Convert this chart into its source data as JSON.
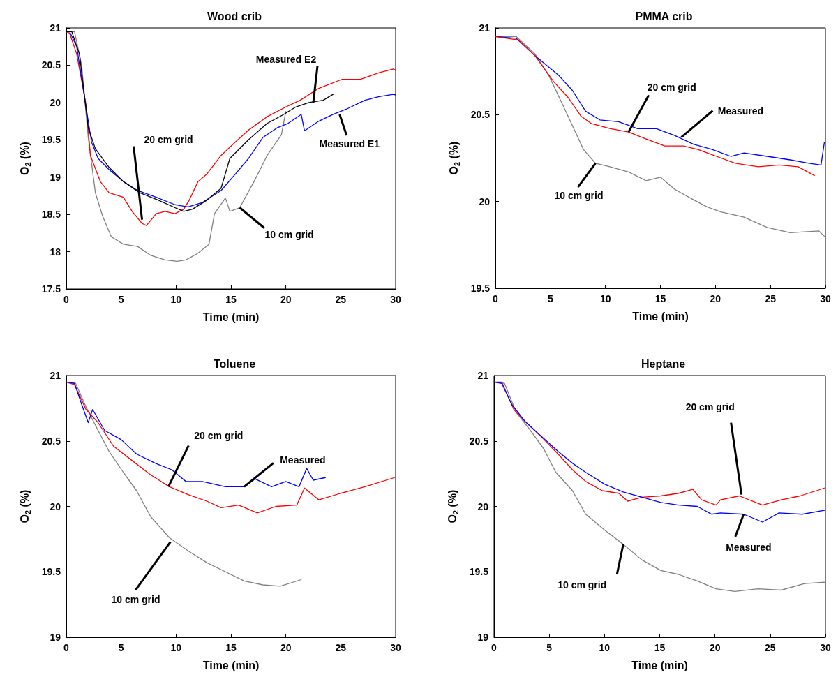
{
  "chart_data": [
    {
      "type": "line",
      "title": "Wood crib",
      "xlabel": "Time (min)",
      "ylabel": "O$_{2}$ (%)",
      "xlim": [
        0,
        30
      ],
      "xticks": [
        0,
        5,
        10,
        15,
        20,
        25,
        30
      ],
      "ylim": [
        17.5,
        21
      ],
      "yticks": [
        17.5,
        18,
        18.5,
        19,
        19.5,
        20,
        20.5,
        21
      ],
      "grid": false,
      "marker": "none",
      "line_style": "solid",
      "annotations": [
        {
          "text": "Measured E2",
          "x": 22.5,
          "y": 20.0
        },
        {
          "text": "Measured E1",
          "x": 24.9,
          "y": 19.84
        },
        {
          "text": "20 cm grid",
          "x": 6.9,
          "y": 18.43
        },
        {
          "text": "10 cm grid",
          "x": 15.8,
          "y": 18.59
        }
      ],
      "series": [
        {
          "color": "#808080",
          "x": [
            0,
            0.75,
            1.4,
            2.0,
            2.65,
            3.3,
            4.1,
            5.2,
            6.5,
            7.7,
            9.0,
            10.1,
            10.9,
            12.0,
            13.0,
            13.5,
            14.5,
            14.9,
            15.8,
            17.1,
            18.3,
            19.6,
            20.0
          ],
          "values": [
            20.95,
            20.95,
            20.5,
            19.53,
            18.79,
            18.48,
            18.2,
            18.1,
            18.07,
            17.95,
            17.89,
            17.87,
            17.89,
            17.98,
            18.1,
            18.51,
            18.72,
            18.54,
            18.59,
            18.94,
            19.29,
            19.57,
            19.88
          ]
        },
        {
          "color": "#ff0000",
          "x": [
            0,
            0.3,
            0.95,
            1.8,
            2.2,
            3.1,
            3.9,
            5.2,
            6.0,
            6.9,
            7.3,
            8.2,
            9.0,
            9.9,
            10.7,
            11.2,
            12.0,
            12.8,
            14.1,
            15.4,
            16.6,
            18.3,
            20.0,
            21.3,
            23.0,
            25.1,
            26.8,
            28.5,
            29.8,
            30
          ],
          "values": [
            20.95,
            20.93,
            20.65,
            19.97,
            19.29,
            18.94,
            18.79,
            18.73,
            18.54,
            18.38,
            18.35,
            18.51,
            18.54,
            18.51,
            18.57,
            18.69,
            18.94,
            19.04,
            19.29,
            19.47,
            19.63,
            19.81,
            19.94,
            20.03,
            20.19,
            20.31,
            20.31,
            20.4,
            20.45,
            20.43
          ]
        },
        {
          "color": "#0000ff",
          "x": [
            0,
            0.3,
            0.95,
            1.8,
            2.3,
            2.9,
            3.9,
            5.2,
            6.5,
            8.2,
            9.9,
            11.1,
            12.4,
            14.1,
            15.4,
            16.6,
            17.9,
            19.2,
            20.2,
            21.4,
            21.7,
            23.0,
            24.3,
            25.5,
            27.2,
            28.5,
            29.8,
            30
          ],
          "values": [
            20.95,
            20.95,
            20.75,
            19.94,
            19.47,
            19.25,
            19.1,
            18.94,
            18.82,
            18.73,
            18.63,
            18.6,
            18.66,
            18.82,
            19.04,
            19.25,
            19.53,
            19.66,
            19.72,
            19.84,
            19.62,
            19.75,
            19.84,
            19.91,
            20.03,
            20.08,
            20.11,
            20.1
          ]
        },
        {
          "color": "#000000",
          "x": [
            0,
            0.5,
            1.2,
            2.0,
            2.65,
            3.9,
            5.2,
            6.7,
            8.4,
            9.9,
            10.7,
            11.5,
            12.8,
            14.1,
            14.9,
            16.6,
            18.3,
            19.8,
            20.9,
            22.1,
            23.4,
            24.3
          ],
          "values": [
            20.95,
            20.95,
            20.65,
            19.66,
            19.38,
            19.13,
            18.94,
            18.79,
            18.69,
            18.59,
            18.54,
            18.57,
            18.69,
            18.85,
            19.25,
            19.5,
            19.72,
            19.84,
            19.94,
            20.0,
            20.03,
            20.11
          ]
        }
      ]
    },
    {
      "type": "line",
      "title": "PMMA crib",
      "xlabel": "Time (min)",
      "ylabel": "O$_{2}$ (%)",
      "xlim": [
        0,
        30
      ],
      "xticks": [
        0,
        5,
        10,
        15,
        20,
        25,
        30
      ],
      "ylim": [
        19.5,
        21
      ],
      "yticks": [
        19.5,
        20,
        20.5,
        21
      ],
      "grid": false,
      "marker": "none",
      "line_style": "solid",
      "annotations": [
        {
          "text": "Measured",
          "x": 16.9,
          "y": 20.37
        },
        {
          "text": "20 cm grid",
          "x": 12.1,
          "y": 20.4
        },
        {
          "text": "10 cm grid",
          "x": 9.1,
          "y": 20.22
        }
      ],
      "series": [
        {
          "color": "#808080",
          "x": [
            0,
            1.9,
            3.6,
            4.9,
            6.1,
            7.2,
            8.0,
            9.1,
            10.4,
            12.1,
            13.7,
            15.0,
            16.3,
            18.0,
            19.2,
            20.5,
            22.6,
            24.7,
            26.8,
            29.4,
            29.9
          ],
          "values": [
            20.95,
            20.95,
            20.85,
            20.72,
            20.56,
            20.41,
            20.3,
            20.22,
            20.2,
            20.17,
            20.12,
            20.14,
            20.07,
            20.01,
            19.97,
            19.94,
            19.91,
            19.85,
            19.82,
            19.83,
            19.8
          ]
        },
        {
          "color": "#0000ff",
          "x": [
            0,
            1.9,
            3.6,
            5.7,
            7.0,
            8.2,
            9.5,
            11.2,
            12.9,
            14.6,
            16.3,
            18.0,
            19.7,
            21.4,
            22.6,
            24.7,
            26.8,
            28.5,
            29.6,
            29.9
          ],
          "values": [
            20.95,
            20.94,
            20.84,
            20.73,
            20.64,
            20.52,
            20.47,
            20.46,
            20.42,
            20.42,
            20.38,
            20.33,
            20.3,
            20.26,
            20.28,
            20.26,
            20.24,
            20.22,
            20.21,
            20.34
          ]
        },
        {
          "color": "#ff0000",
          "x": [
            0,
            2.1,
            3.6,
            5.3,
            6.6,
            7.8,
            8.7,
            10.4,
            12.1,
            13.7,
            15.4,
            17.1,
            18.4,
            20.1,
            21.8,
            23.9,
            25.8,
            27.5,
            29.0
          ],
          "values": [
            20.95,
            20.93,
            20.84,
            20.69,
            20.6,
            20.49,
            20.45,
            20.42,
            20.4,
            20.36,
            20.32,
            20.32,
            20.3,
            20.26,
            20.22,
            20.2,
            20.21,
            20.2,
            20.15
          ]
        }
      ]
    },
    {
      "type": "line",
      "title": "Toluene",
      "xlabel": "Time (min)",
      "ylabel": "O$_{2}$ (%)",
      "xlim": [
        0,
        30
      ],
      "xticks": [
        0,
        5,
        10,
        15,
        20,
        25,
        30
      ],
      "ylim": [
        19,
        21
      ],
      "yticks": [
        19,
        19.5,
        20,
        20.5,
        21
      ],
      "grid": false,
      "marker": "none",
      "line_style": "solid",
      "annotations": [
        {
          "text": "Measured",
          "x": 16.2,
          "y": 20.15
        },
        {
          "text": "20 cm grid",
          "x": 9.3,
          "y": 20.15
        },
        {
          "text": "10 cm grid",
          "x": 9.5,
          "y": 19.73
        }
      ],
      "series": [
        {
          "color": "#808080",
          "x": [
            0,
            0.85,
            1.8,
            2.9,
            3.9,
            5.2,
            6.4,
            7.7,
            9.4,
            11.1,
            12.8,
            14.5,
            16.2,
            17.9,
            19.5,
            21.4
          ],
          "values": [
            20.95,
            20.94,
            20.76,
            20.58,
            20.42,
            20.26,
            20.12,
            19.92,
            19.76,
            19.66,
            19.57,
            19.5,
            19.43,
            19.4,
            19.39,
            19.44
          ]
        },
        {
          "color": "#ff0000",
          "x": [
            0,
            0.75,
            1.8,
            2.9,
            4.3,
            6.0,
            7.7,
            9.4,
            11.1,
            12.8,
            14.1,
            15.7,
            17.4,
            19.1,
            21.0,
            21.7,
            23.0,
            25.0,
            27.2,
            29.9
          ],
          "values": [
            20.95,
            20.93,
            20.74,
            20.64,
            20.46,
            20.35,
            20.24,
            20.15,
            20.09,
            20.04,
            19.99,
            20.01,
            19.95,
            20.0,
            20.01,
            20.14,
            20.05,
            20.1,
            20.15,
            20.22
          ]
        },
        {
          "color": "#0000ff",
          "x": [
            0,
            0.75,
            1.4,
            2.0,
            2.4,
            3.5,
            5.0,
            6.4,
            8.1,
            9.6,
            10.9,
            12.4,
            14.5,
            16.2,
            17.2,
            18.7,
            20.0,
            21.2,
            21.9,
            22.5,
            23.6
          ],
          "values": [
            20.95,
            20.94,
            20.78,
            20.64,
            20.74,
            20.58,
            20.51,
            20.4,
            20.33,
            20.28,
            20.19,
            20.19,
            20.15,
            20.15,
            20.21,
            20.15,
            20.19,
            20.15,
            20.29,
            20.2,
            20.22
          ]
        }
      ]
    },
    {
      "type": "line",
      "title": "Heptane",
      "xlabel": "Time (min)",
      "ylabel": "O$_{2}$ (%)",
      "xlim": [
        0,
        30
      ],
      "xticks": [
        0,
        5,
        10,
        15,
        20,
        25,
        30
      ],
      "ylim": [
        19,
        21
      ],
      "yticks": [
        19,
        19.5,
        20,
        20.5,
        21
      ],
      "grid": false,
      "marker": "none",
      "line_style": "solid",
      "annotations": [
        {
          "text": "20 cm grid",
          "x": 22.4,
          "y": 20.09
        },
        {
          "text": "Measured",
          "x": 22.6,
          "y": 19.94
        },
        {
          "text": "10 cm grid",
          "x": 11.7,
          "y": 19.71
        }
      ],
      "series": [
        {
          "color": "#808080",
          "x": [
            0,
            0.95,
            2.0,
            3.3,
            4.5,
            5.6,
            7.1,
            8.3,
            10.0,
            11.7,
            13.4,
            15.1,
            16.7,
            18.4,
            20.1,
            21.8,
            23.9,
            26.0,
            28.1,
            29.9
          ],
          "values": [
            20.95,
            20.94,
            20.72,
            20.58,
            20.44,
            20.26,
            20.12,
            19.94,
            19.82,
            19.71,
            19.59,
            19.51,
            19.48,
            19.43,
            19.37,
            19.35,
            19.37,
            19.36,
            19.41,
            19.42
          ]
        },
        {
          "color": "#ff0000",
          "x": [
            0,
            0.7,
            1.8,
            2.8,
            4.3,
            5.8,
            7.1,
            8.3,
            9.8,
            11.3,
            12.1,
            13.4,
            15.1,
            16.7,
            18.0,
            18.8,
            20.1,
            20.5,
            22.2,
            24.3,
            26.0,
            27.7,
            29.2,
            29.9
          ],
          "values": [
            20.95,
            20.95,
            20.74,
            20.65,
            20.53,
            20.4,
            20.28,
            20.19,
            20.12,
            20.1,
            20.04,
            20.07,
            20.08,
            20.1,
            20.13,
            20.05,
            20.01,
            20.05,
            20.08,
            20.01,
            20.05,
            20.08,
            20.12,
            20.14
          ]
        },
        {
          "color": "#0000ff",
          "x": [
            0,
            0.7,
            1.6,
            2.8,
            4.1,
            5.8,
            7.1,
            8.3,
            10.0,
            11.7,
            13.4,
            15.1,
            16.7,
            18.4,
            19.7,
            20.5,
            22.6,
            24.3,
            25.8,
            27.9,
            29.9
          ],
          "values": [
            20.95,
            20.94,
            20.78,
            20.65,
            20.55,
            20.42,
            20.33,
            20.26,
            20.17,
            20.11,
            20.07,
            20.03,
            20.01,
            20.0,
            19.94,
            19.95,
            19.94,
            19.88,
            19.95,
            19.94,
            19.97
          ]
        }
      ]
    }
  ]
}
